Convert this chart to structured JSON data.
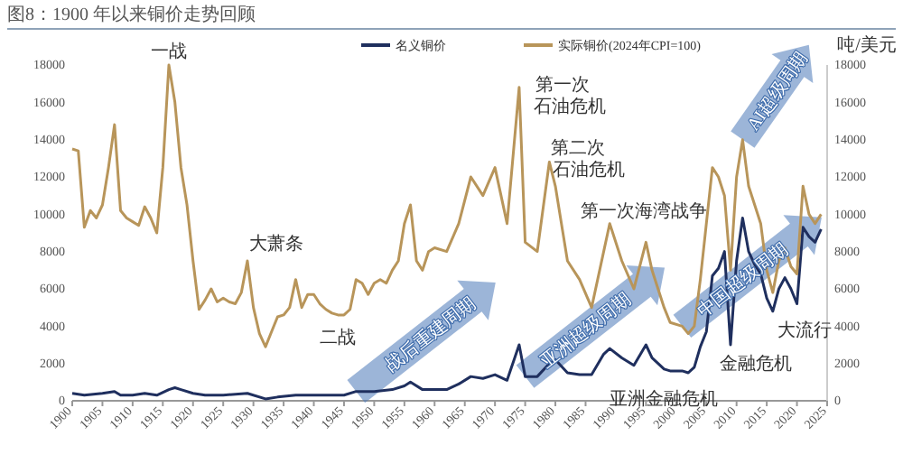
{
  "chart_data": {
    "type": "line",
    "title": "图8：1900 年以来铜价走势回顾",
    "y2label": "吨/美元",
    "xlim": [
      1900,
      2025
    ],
    "xticks": [
      1900,
      1905,
      1910,
      1915,
      1920,
      1925,
      1930,
      1935,
      1940,
      1945,
      1950,
      1955,
      1960,
      1965,
      1970,
      1975,
      1980,
      1985,
      1990,
      1995,
      2000,
      2005,
      2010,
      2015,
      2020,
      2025
    ],
    "ylim": [
      0,
      18000
    ],
    "yticks": [
      0,
      2000,
      4000,
      6000,
      8000,
      10000,
      12000,
      14000,
      16000,
      18000
    ],
    "y2lim": [
      0,
      18000
    ],
    "y2ticks": [
      0,
      2000,
      4000,
      6000,
      8000,
      10000,
      12000,
      14000,
      16000,
      18000
    ],
    "legend": "top",
    "grid": false,
    "marker": "none",
    "line_style": "solid",
    "series": [
      {
        "name": "名义铜价",
        "color": "#1f2f5e",
        "x": [
          1900,
          1902,
          1905,
          1907,
          1908,
          1910,
          1912,
          1914,
          1916,
          1917,
          1918,
          1920,
          1922,
          1925,
          1929,
          1932,
          1934,
          1937,
          1940,
          1945,
          1947,
          1950,
          1953,
          1955,
          1956,
          1958,
          1960,
          1962,
          1964,
          1966,
          1968,
          1970,
          1972,
          1974,
          1975,
          1977,
          1979,
          1980,
          1982,
          1984,
          1986,
          1988,
          1989,
          1991,
          1993,
          1995,
          1996,
          1998,
          1999,
          2001,
          2002,
          2003,
          2004,
          2005,
          2006,
          2007,
          2008,
          2009,
          2010,
          2011,
          2012,
          2013,
          2014,
          2015,
          2016,
          2017,
          2018,
          2019,
          2020,
          2021,
          2022,
          2023,
          2024
        ],
        "values": [
          400,
          300,
          400,
          500,
          300,
          300,
          400,
          300,
          600,
          700,
          600,
          400,
          300,
          300,
          400,
          100,
          200,
          300,
          300,
          300,
          500,
          500,
          600,
          800,
          1000,
          600,
          600,
          600,
          900,
          1300,
          1200,
          1400,
          1100,
          3000,
          1300,
          1300,
          2000,
          2200,
          1500,
          1400,
          1400,
          2500,
          2800,
          2300,
          1900,
          3000,
          2300,
          1700,
          1600,
          1600,
          1500,
          1800,
          2900,
          3700,
          6700,
          7100,
          8000,
          3000,
          7500,
          9800,
          8000,
          7300,
          6800,
          5500,
          4800,
          6000,
          6600,
          6000,
          5200,
          9300,
          8800,
          8500,
          9200
        ]
      },
      {
        "name": "实际铜价(2024年CPI=100)",
        "color": "#b8955a",
        "x": [
          1900,
          1901,
          1902,
          1903,
          1904,
          1905,
          1906,
          1907,
          1908,
          1909,
          1910,
          1911,
          1912,
          1913,
          1914,
          1915,
          1916,
          1917,
          1918,
          1919,
          1920,
          1921,
          1922,
          1923,
          1924,
          1925,
          1926,
          1927,
          1928,
          1929,
          1930,
          1931,
          1932,
          1933,
          1934,
          1935,
          1936,
          1937,
          1938,
          1939,
          1940,
          1941,
          1942,
          1943,
          1944,
          1945,
          1946,
          1947,
          1948,
          1949,
          1950,
          1951,
          1952,
          1953,
          1954,
          1955,
          1956,
          1957,
          1958,
          1959,
          1960,
          1962,
          1964,
          1966,
          1968,
          1970,
          1972,
          1974,
          1975,
          1977,
          1979,
          1980,
          1982,
          1984,
          1986,
          1988,
          1989,
          1991,
          1993,
          1995,
          1996,
          1998,
          1999,
          2001,
          2002,
          2003,
          2004,
          2006,
          2007,
          2008,
          2009,
          2010,
          2011,
          2012,
          2013,
          2014,
          2015,
          2016,
          2017,
          2018,
          2019,
          2020,
          2021,
          2022,
          2023,
          2024
        ],
        "values": [
          13500,
          13400,
          9300,
          10200,
          9800,
          10500,
          12500,
          14800,
          10200,
          9800,
          9600,
          9400,
          10400,
          9800,
          9000,
          12500,
          18000,
          16000,
          12500,
          10500,
          7500,
          4900,
          5400,
          6000,
          5300,
          5500,
          5300,
          5200,
          5800,
          7500,
          5000,
          3600,
          2900,
          3700,
          4500,
          4600,
          5000,
          6500,
          5000,
          5700,
          5700,
          5200,
          4900,
          4700,
          4600,
          4600,
          4900,
          6500,
          6300,
          5700,
          6300,
          6500,
          6300,
          7000,
          7500,
          9500,
          10500,
          7500,
          7000,
          8000,
          8200,
          8000,
          9500,
          12000,
          11000,
          12500,
          9500,
          16800,
          8500,
          8000,
          12800,
          11500,
          7500,
          6500,
          5000,
          8000,
          9500,
          7500,
          6000,
          8500,
          7000,
          5000,
          4200,
          4000,
          3600,
          4000,
          6500,
          12500,
          12000,
          11000,
          7000,
          12000,
          14000,
          11500,
          10500,
          9500,
          7000,
          5800,
          7500,
          8200,
          7200,
          6800,
          11500,
          10000,
          9500,
          10000
        ]
      }
    ],
    "annotations": [
      {
        "text": "一战",
        "x": 1916,
        "y": 18000
      },
      {
        "text": "大萧条",
        "x": 1929,
        "y": 7500
      },
      {
        "text": "二战",
        "x": 1944,
        "y": 4600
      },
      {
        "text": "第一次",
        "x": 1974,
        "y": 16800
      },
      {
        "text": "石油危机",
        "x": 1974,
        "y": 16800
      },
      {
        "text": "第二次",
        "x": 1979,
        "y": 12800
      },
      {
        "text": "石油危机",
        "x": 1979,
        "y": 12800
      },
      {
        "text": "第一次海湾战争",
        "x": 1991,
        "y": 7500
      },
      {
        "text": "金融危机",
        "x": 2009,
        "y": 3000
      },
      {
        "text": "亚洲金融危机",
        "x": 1998,
        "y": 1700
      },
      {
        "text": "大流行",
        "x": 2020,
        "y": 5200
      },
      {
        "text": "战后重建周期",
        "x": 1947,
        "y": 500
      },
      {
        "text": "亚洲超级周期",
        "x": 1975,
        "y": 1300
      },
      {
        "text": "中国超级周期",
        "x": 2001,
        "y": 4000
      },
      {
        "text": "AI超级周期",
        "x": 2011,
        "y": 14000
      }
    ]
  }
}
